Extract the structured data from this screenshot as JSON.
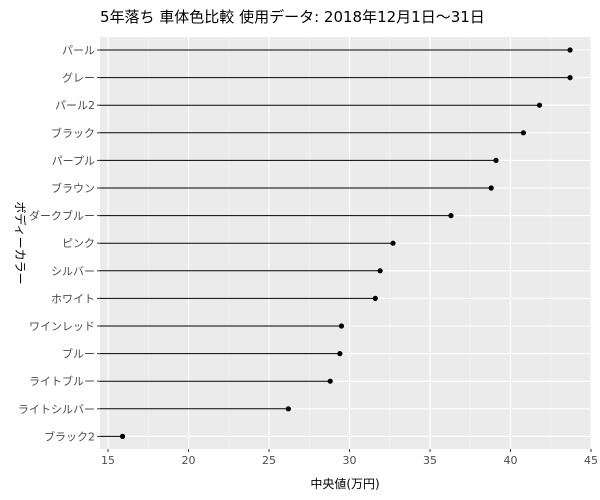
{
  "chart_data": {
    "type": "lollipop",
    "title": "5年落ち 車体色比較 使用データ: 2018年12月1日〜31日",
    "xlabel": "中央値(万円)",
    "ylabel": "ボディーカラー",
    "xlim": [
      14.5,
      45
    ],
    "xticks": [
      15,
      20,
      25,
      30,
      35,
      40,
      45
    ],
    "grid": true,
    "legend": "none",
    "categories": [
      "パール",
      "グレー",
      "パール2",
      "ブラック",
      "パープル",
      "ブラウン",
      "ダークブルー",
      "ピンク",
      "シルバー",
      "ホワイト",
      "ワインレッド",
      "ブルー",
      "ライトブルー",
      "ライトシルバー",
      "ブラック2"
    ],
    "values": [
      43.7,
      43.7,
      41.8,
      40.8,
      39.1,
      38.8,
      36.3,
      32.7,
      31.9,
      31.6,
      29.5,
      29.4,
      28.8,
      26.2,
      15.9
    ]
  }
}
